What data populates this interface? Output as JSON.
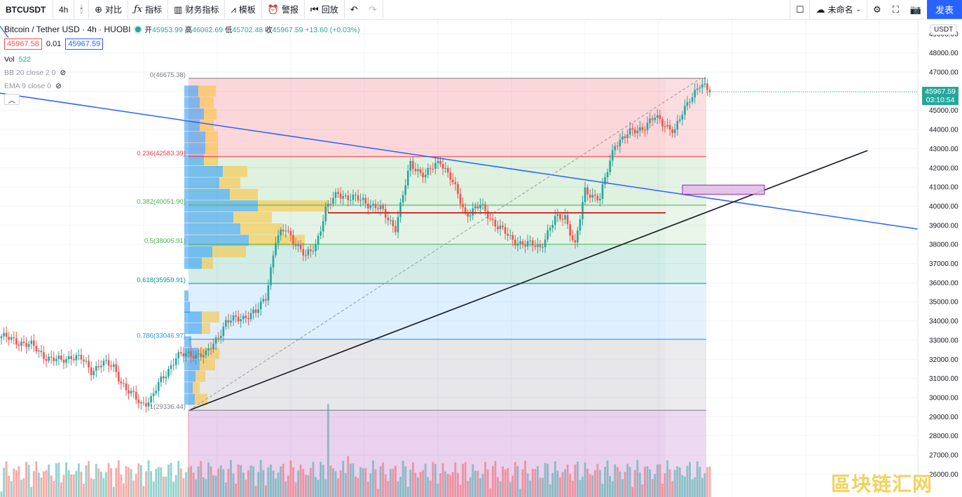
{
  "toolbar": {
    "symbol": "BTCUSDT",
    "interval": "4h",
    "compare_label": "对比",
    "indicators_label": "指标",
    "financials_label": "财务指标",
    "templates_label": "模板",
    "alert_label": "警报",
    "replay_label": "回放",
    "layout_name": "未命名",
    "publish_label": "发表"
  },
  "legend": {
    "title": "Bitcoin / Tether USD · 4h · HUOBI",
    "open_label": "开",
    "open": "45953.99",
    "high_label": "高",
    "high": "46062.69",
    "low_label": "低",
    "low": "45702.48",
    "close_label": "收",
    "close": "45967.59",
    "change": "+13.60 (+0.03%)",
    "bid": "45967.58",
    "spread": "0.01",
    "ask": "45967.59",
    "vol_label": "Vol",
    "vol_value": "522",
    "bb_label": "BB 20 close 2 0",
    "ema_label": "EMA 9 close 0"
  },
  "price_scale": {
    "currency": "USDT",
    "last_price": "45967.59",
    "countdown": "03:10:54"
  },
  "colors": {
    "up": "#26a69a",
    "down": "#ef5350",
    "blue_line": "#2962ff",
    "accent": "#2962ff"
  },
  "chart_data": {
    "type": "candlestick",
    "title": "Bitcoin / Tether USD · 4h · HUOBI",
    "ylim": [
      26000,
      49500
    ],
    "y_ticks": [
      "26000.00",
      "27000.00",
      "28000.00",
      "29000.00",
      "30000.00",
      "31000.00",
      "32000.00",
      "33000.00",
      "34000.00",
      "35000.00",
      "36000.00",
      "37000.00",
      "38000.00",
      "39000.00",
      "40000.00",
      "41000.00",
      "42000.00",
      "43000.00",
      "44000.00",
      "45000.00",
      "46000.00",
      "47000.00",
      "48000.00",
      "49000.00"
    ],
    "fib_levels": [
      {
        "ratio": "0",
        "price": 46675.38,
        "label": "0(46675.38)",
        "color": "#787b86"
      },
      {
        "ratio": "0.236",
        "price": 42583.39,
        "label": "0.236(42583.39)",
        "color": "#f23645"
      },
      {
        "ratio": "0.382",
        "price": 40051.9,
        "label": "0.382(40051.90)",
        "color": "#4caf50"
      },
      {
        "ratio": "0.5",
        "price": 38005.91,
        "label": "0.5(38005.91)",
        "color": "#4caf50"
      },
      {
        "ratio": "0.618",
        "price": 35959.91,
        "label": "0.618(35959.91)",
        "color": "#089981"
      },
      {
        "ratio": "0.786",
        "price": 33046.97,
        "label": "0.786(33046.97)",
        "color": "#2196f3"
      },
      {
        "ratio": "1",
        "price": 29336.44,
        "label": "1(29336.44)",
        "color": "#787b86"
      }
    ],
    "close_path": [
      [
        0,
        33200
      ],
      [
        4,
        33000
      ],
      [
        8,
        32900
      ],
      [
        12,
        32700
      ],
      [
        16,
        32300
      ],
      [
        20,
        32000
      ],
      [
        24,
        31900
      ],
      [
        28,
        32200
      ],
      [
        32,
        32000
      ],
      [
        36,
        31400
      ],
      [
        40,
        31800
      ],
      [
        45,
        31600
      ],
      [
        50,
        30400
      ],
      [
        56,
        29700
      ],
      [
        60,
        29900
      ],
      [
        64,
        30900
      ],
      [
        70,
        32100
      ],
      [
        76,
        32300
      ],
      [
        82,
        32200
      ],
      [
        90,
        33900
      ],
      [
        96,
        34200
      ],
      [
        102,
        34400
      ],
      [
        106,
        35300
      ],
      [
        110,
        38200
      ],
      [
        114,
        38800
      ],
      [
        118,
        38100
      ],
      [
        122,
        37300
      ],
      [
        126,
        38000
      ],
      [
        130,
        39800
      ],
      [
        135,
        40700
      ],
      [
        140,
        40400
      ],
      [
        145,
        40300
      ],
      [
        152,
        39800
      ],
      [
        158,
        38900
      ],
      [
        164,
        42200
      ],
      [
        170,
        41600
      ],
      [
        176,
        42400
      ],
      [
        180,
        41500
      ],
      [
        186,
        39600
      ],
      [
        192,
        40000
      ],
      [
        198,
        39100
      ],
      [
        204,
        38300
      ],
      [
        210,
        38000
      ],
      [
        216,
        37900
      ],
      [
        222,
        39300
      ],
      [
        226,
        39500
      ],
      [
        230,
        37900
      ],
      [
        234,
        40800
      ],
      [
        240,
        40400
      ],
      [
        246,
        43300
      ],
      [
        252,
        43800
      ],
      [
        258,
        44200
      ],
      [
        262,
        44600
      ],
      [
        266,
        44300
      ],
      [
        270,
        43900
      ],
      [
        276,
        45700
      ],
      [
        280,
        46300
      ],
      [
        284,
        45967
      ]
    ],
    "volume_note": "Vol 522"
  }
}
